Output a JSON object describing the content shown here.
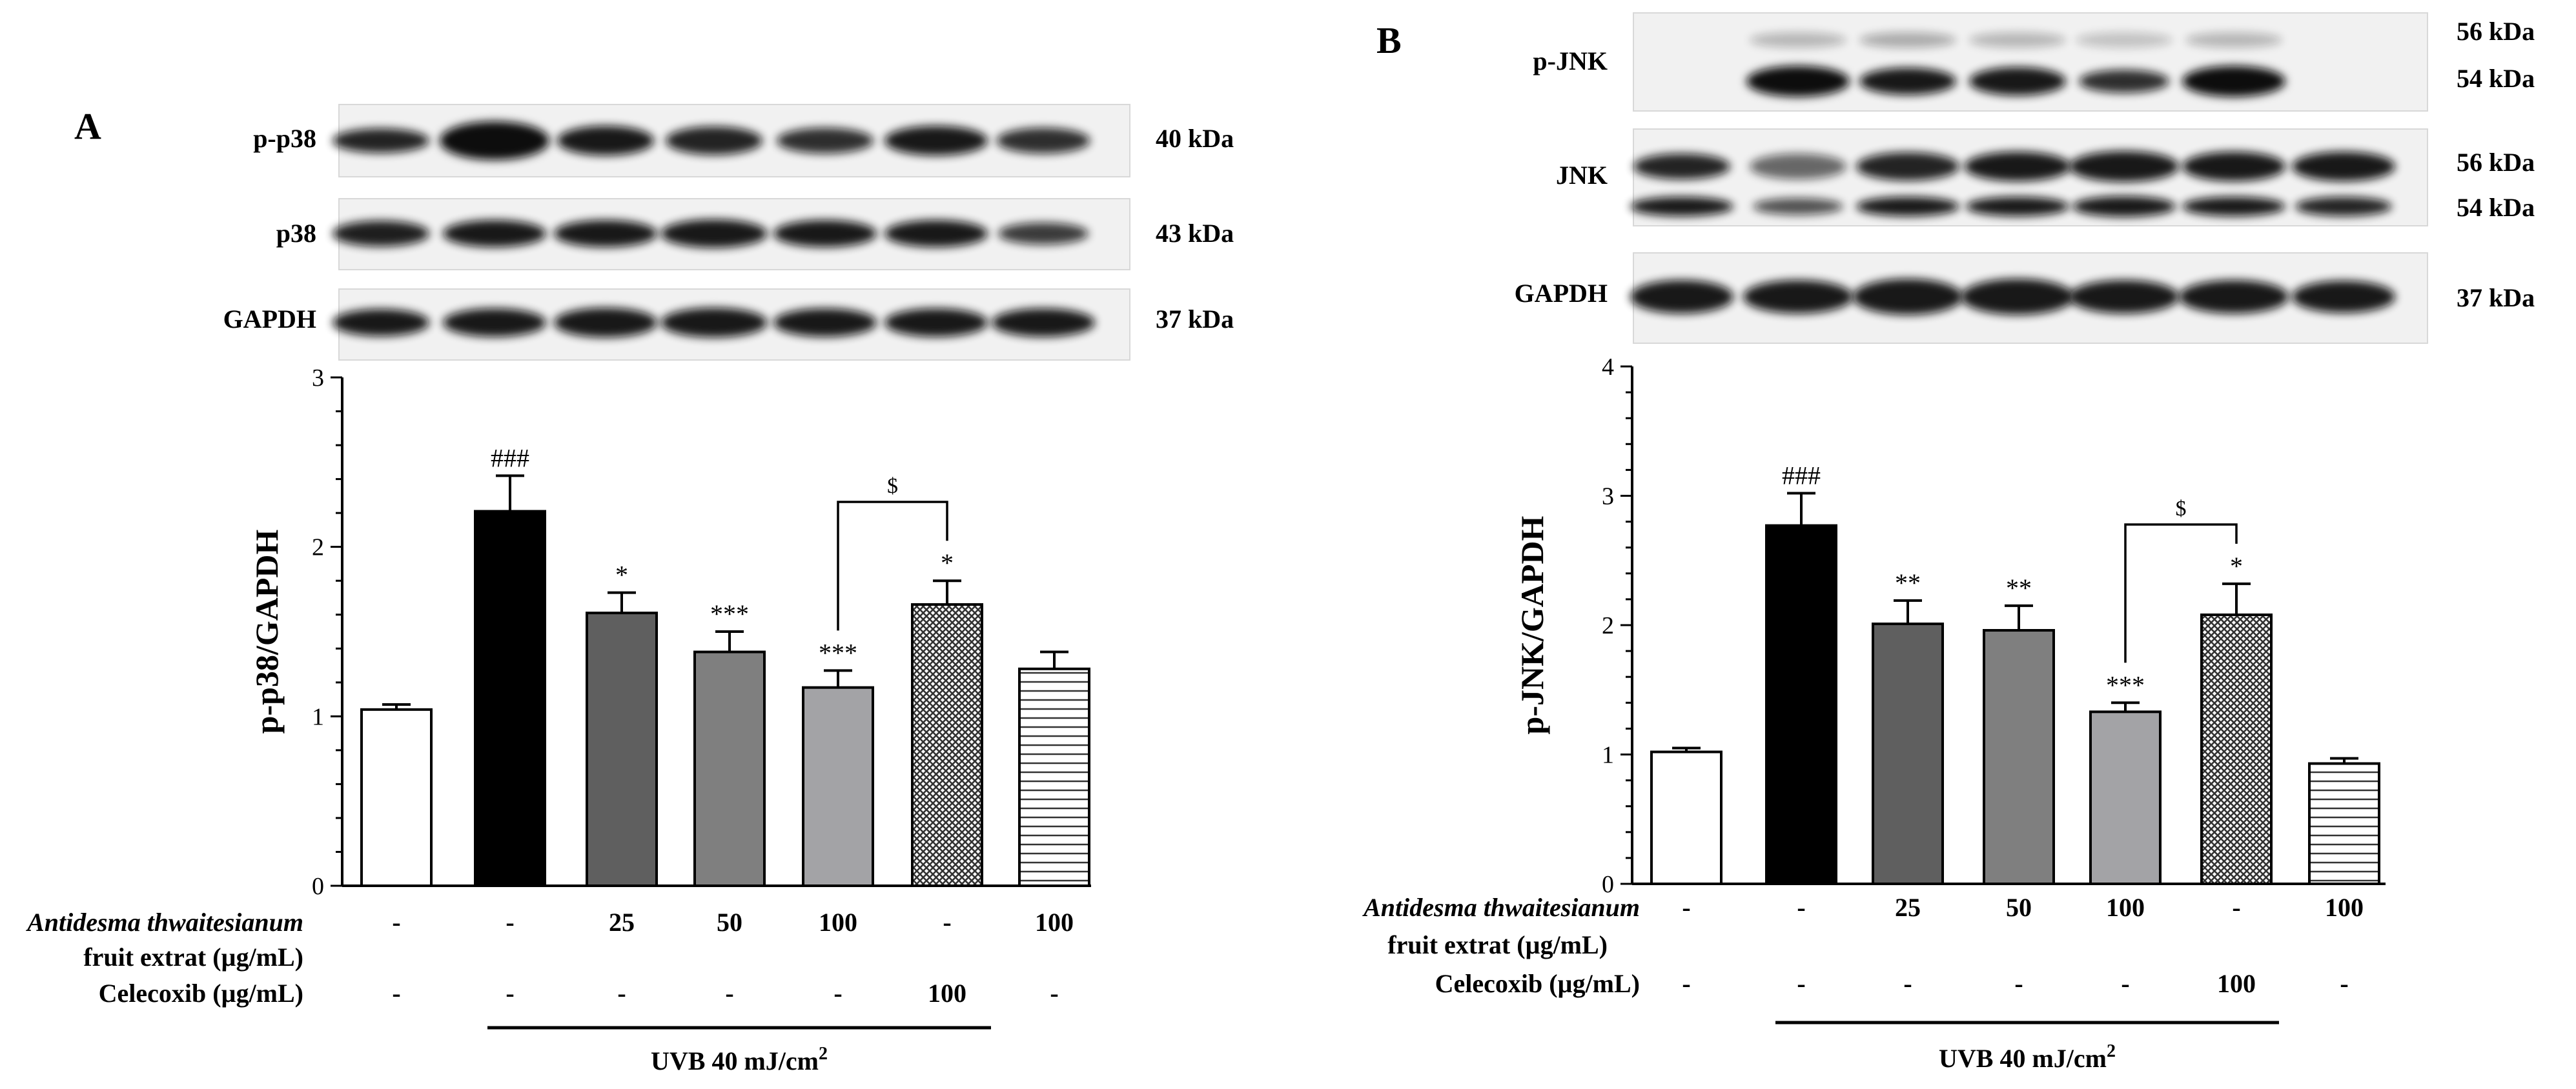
{
  "panels": [
    {
      "letter": "A",
      "blots": [
        {
          "label": "p-p38",
          "kda": [
            "40 kDa"
          ]
        },
        {
          "label": "p38",
          "kda": [
            "43 kDa"
          ]
        },
        {
          "label": "GAPDH",
          "kda": [
            "37 kDa"
          ]
        }
      ],
      "chart_data": {
        "type": "bar",
        "ylabel": "p-p38/GAPDH",
        "ylim": [
          0,
          3
        ],
        "yticks": [
          0,
          1,
          2,
          3
        ],
        "values": [
          1.04,
          2.21,
          1.61,
          1.38,
          1.17,
          1.66,
          1.28
        ],
        "errors": [
          0.03,
          0.21,
          0.12,
          0.12,
          0.1,
          0.14,
          0.1
        ],
        "annotations": [
          "",
          "###",
          "*",
          "***",
          "***",
          "*",
          ""
        ],
        "fills": [
          "white",
          "black",
          "dark-gray",
          "medium-gray",
          "light-gray",
          "crosshatch",
          "horizontal-lines"
        ],
        "bracket": {
          "label": "$",
          "from_bar": 4,
          "to_bar": 5
        },
        "grid": false,
        "legend": "none"
      },
      "treatment_rows": [
        {
          "label": "Antidesma thwaitesianum",
          "italic": true,
          "values": [
            "-",
            "-",
            "25",
            "50",
            "100",
            "-",
            "100"
          ]
        },
        {
          "label": "fruit extrat  (µg/mL)",
          "italic": false,
          "values": []
        },
        {
          "label": "Celecoxib (µg/mL)",
          "italic": false,
          "values": [
            "-",
            "-",
            "-",
            "-",
            "-",
            "100",
            "-"
          ]
        }
      ],
      "uvb": {
        "text": "UVB 40 mJ/cm",
        "sup": "2"
      }
    },
    {
      "letter": "B",
      "blots": [
        {
          "label": "p-JNK",
          "kda": [
            "56 kDa",
            "54 kDa"
          ]
        },
        {
          "label": "JNK",
          "kda": [
            "56 kDa",
            "54 kDa"
          ]
        },
        {
          "label": "GAPDH",
          "kda": [
            "37 kDa"
          ]
        }
      ],
      "chart_data": {
        "type": "bar",
        "ylabel": "p-JNK/GAPDH",
        "ylim": [
          0,
          4
        ],
        "yticks": [
          0,
          1,
          2,
          3,
          4
        ],
        "values": [
          1.02,
          2.77,
          2.01,
          1.96,
          1.33,
          2.08,
          0.93
        ],
        "errors": [
          0.03,
          0.25,
          0.18,
          0.19,
          0.07,
          0.24,
          0.04
        ],
        "annotations": [
          "",
          "###",
          "**",
          "**",
          "***",
          "*",
          ""
        ],
        "fills": [
          "white",
          "black",
          "dark-gray",
          "medium-gray",
          "light-gray",
          "crosshatch",
          "horizontal-lines"
        ],
        "bracket": {
          "label": "$",
          "from_bar": 4,
          "to_bar": 5
        },
        "grid": false,
        "legend": "none"
      },
      "treatment_rows": [
        {
          "label": "Antidesma thwaitesianum",
          "italic": true,
          "values": [
            "-",
            "-",
            "25",
            "50",
            "100",
            "-",
            "100"
          ]
        },
        {
          "label": "fruit extrat  (µg/mL)",
          "italic": false,
          "values": []
        },
        {
          "label": "Celecoxib (µg/mL)",
          "italic": false,
          "values": [
            "-",
            "-",
            "-",
            "-",
            "-",
            "100",
            "-"
          ]
        }
      ],
      "uvb": {
        "text": "UVB 40 mJ/cm",
        "sup": "2"
      }
    }
  ]
}
